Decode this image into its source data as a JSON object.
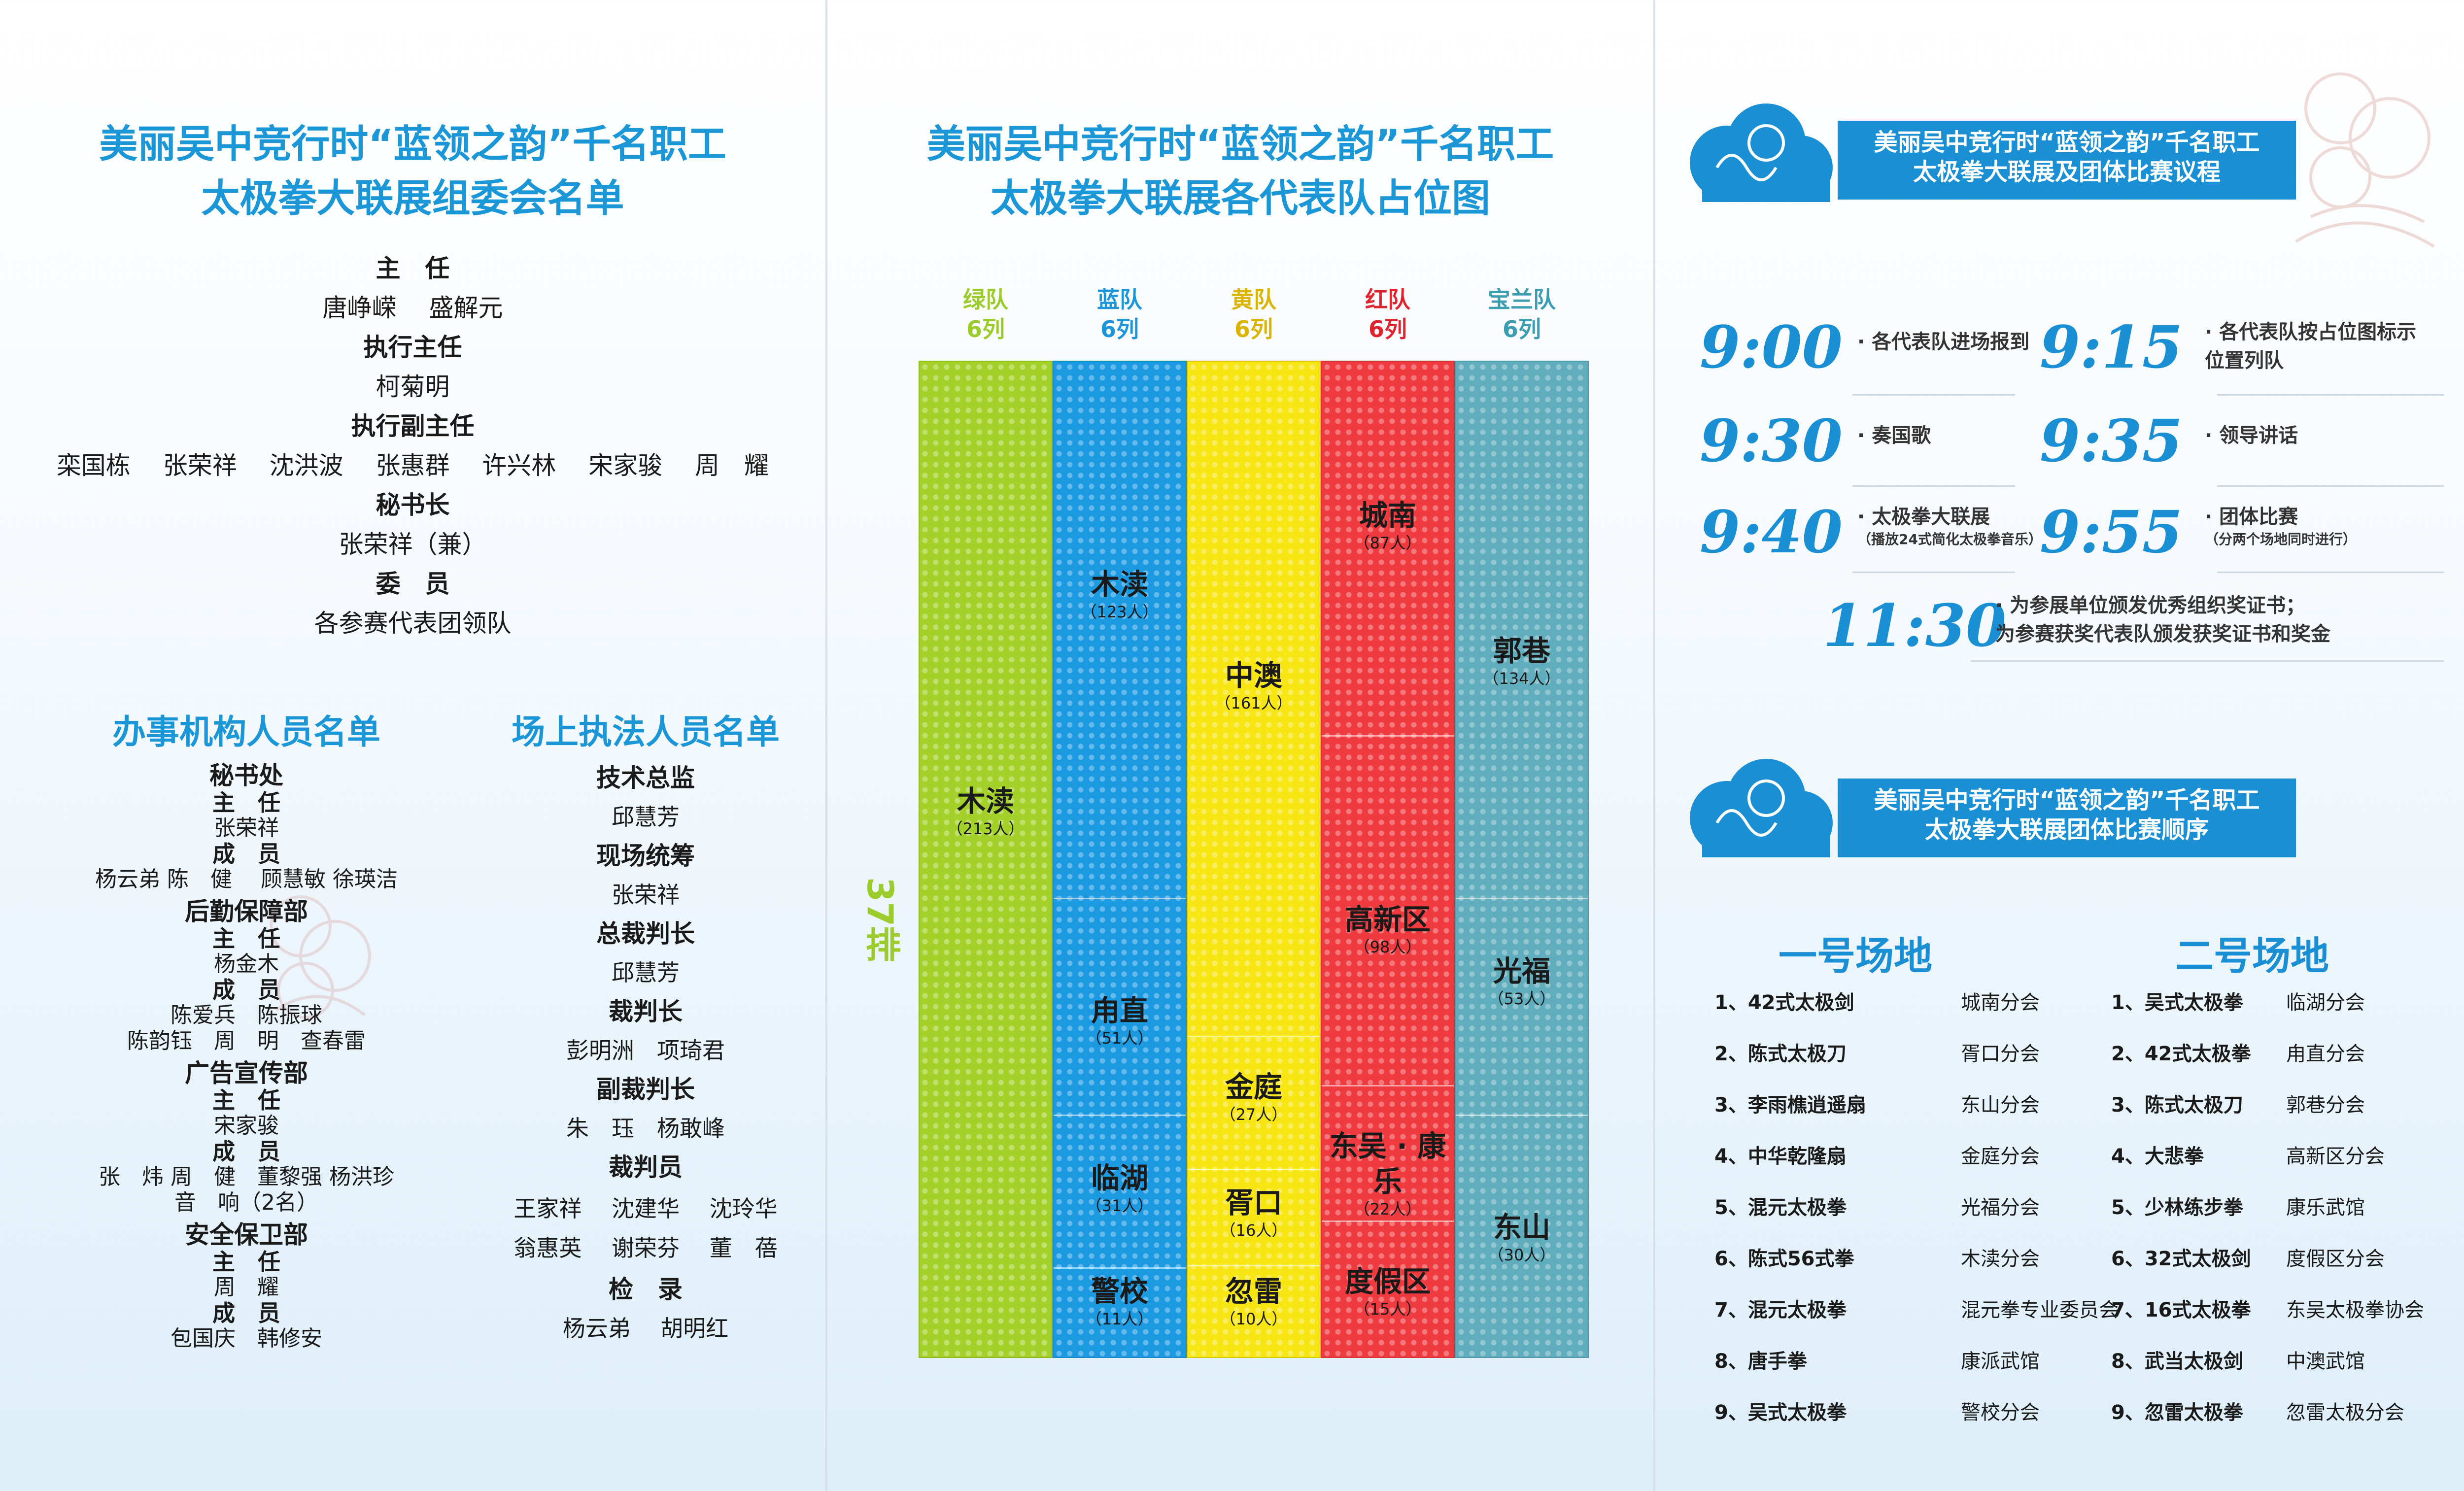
{
  "p1": {
    "title_l1": "美丽吴中竞行时“蓝领之韵”千名职工",
    "title_l2": "太极拳大联展组委会名单",
    "committee": [
      {
        "role": "主　任",
        "names": "唐峥嵘　 盛解元"
      },
      {
        "role": "执行主任",
        "names": "柯菊明"
      },
      {
        "role": "执行副主任",
        "names": "栾国栋　 张荣祥　 沈洪波　 张惠群　 许兴林　 宋家骏　 周　耀"
      },
      {
        "role": "秘书长",
        "names": "张荣祥（兼）"
      },
      {
        "role": "委　员",
        "names": "各参赛代表团领队"
      }
    ],
    "office_title": "办事机构人员名单",
    "office": [
      {
        "dept": "秘书处",
        "lines": [
          {
            "t": "r",
            "v": "主　任"
          },
          {
            "t": "n",
            "v": "张荣祥"
          },
          {
            "t": "r",
            "v": "成　员"
          },
          {
            "t": "n",
            "v": "杨云弟 陈　健　 顾慧敏 徐瑛洁"
          }
        ]
      },
      {
        "dept": "后勤保障部",
        "lines": [
          {
            "t": "r",
            "v": "主　任"
          },
          {
            "t": "n",
            "v": "杨金木"
          },
          {
            "t": "r",
            "v": "成　员"
          },
          {
            "t": "n",
            "v": "陈爱兵　陈振球"
          },
          {
            "t": "n",
            "v": "陈韵钰　周　明　查春雷"
          }
        ]
      },
      {
        "dept": "广告宣传部",
        "lines": [
          {
            "t": "r",
            "v": "主　任"
          },
          {
            "t": "n",
            "v": "宋家骏"
          },
          {
            "t": "r",
            "v": "成　员"
          },
          {
            "t": "n",
            "v": "张　炜 周　健　董黎强 杨洪珍"
          },
          {
            "t": "n",
            "v": "音　响（2名）"
          }
        ]
      },
      {
        "dept": "安全保卫部",
        "lines": [
          {
            "t": "r",
            "v": "主　任"
          },
          {
            "t": "n",
            "v": "周　耀"
          },
          {
            "t": "r",
            "v": "成　员"
          },
          {
            "t": "n",
            "v": "包国庆　韩修安"
          }
        ]
      }
    ],
    "field_title": "场上执法人员名单",
    "field": [
      {
        "role": "技术总监",
        "names": "邱慧芳"
      },
      {
        "role": "现场统筹",
        "names": "张荣祥"
      },
      {
        "role": "总裁判长",
        "names": "邱慧芳"
      },
      {
        "role": "裁判长",
        "names": "彭明洲　项琦君"
      },
      {
        "role": "副裁判长",
        "names": "朱　珏　杨敢峰"
      },
      {
        "role": "裁判员",
        "names": "王家祥　 沈建华　 沈玲华|翁惠英　 谢荣芬　 董　蓓"
      },
      {
        "role": "检　录",
        "names": "杨云弟　 胡明红"
      }
    ]
  },
  "p2": {
    "title_l1": "美丽吴中竞行时“蓝领之韵”千名职工",
    "title_l2": "太极拳大联展各代表队占位图",
    "rows_label": "37排",
    "teams": [
      {
        "name": "绿队",
        "cols": "6列",
        "color": "#9ccc2b",
        "fill": "#a3d12a"
      },
      {
        "name": "蓝队",
        "cols": "6列",
        "color": "#1d95d9",
        "fill": "#1b9ae2"
      },
      {
        "name": "黄队",
        "cols": "6列",
        "color": "#d9b400",
        "fill": "#f7e614"
      },
      {
        "name": "红队",
        "cols": "6列",
        "color": "#e0242f",
        "fill": "#ef3a3f"
      },
      {
        "name": "宝兰队",
        "cols": "6列",
        "color": "#3a9db0",
        "fill": "#5fadbd"
      }
    ],
    "zones": [
      {
        "team": 0,
        "name": "木渎",
        "count": "（213人）"
      },
      {
        "team": 1,
        "name": "木渎",
        "count": "（123人）"
      },
      {
        "team": 1,
        "name": "甪直",
        "count": "（51人）"
      },
      {
        "team": 1,
        "name": "临湖",
        "count": "（31人）"
      },
      {
        "team": 1,
        "name": "警校",
        "count": "（11人）"
      },
      {
        "team": 2,
        "name": "中澳",
        "count": "（161人）"
      },
      {
        "team": 2,
        "name": "金庭",
        "count": "（27人）"
      },
      {
        "team": 2,
        "name": "胥口",
        "count": "（16人）"
      },
      {
        "team": 2,
        "name": "忽雷",
        "count": "（10人）"
      },
      {
        "team": 3,
        "name": "城南",
        "count": "（87人）"
      },
      {
        "team": 3,
        "name": "高新区",
        "count": "（98人）"
      },
      {
        "team": 3,
        "name": "东吴 · 康乐",
        "count": "（22人）"
      },
      {
        "team": 3,
        "name": "度假区",
        "count": "（15人）"
      },
      {
        "team": 4,
        "name": "郭巷",
        "count": "（134人）"
      },
      {
        "team": 4,
        "name": "光福",
        "count": "（53人）"
      },
      {
        "team": 4,
        "name": "东山",
        "count": "（30人）"
      }
    ]
  },
  "p3": {
    "banner1_l1": "美丽吴中竞行时“蓝领之韵”千名职工",
    "banner1_l2": "太极拳大联展及团体比赛议程",
    "agenda": [
      {
        "time": "9:00",
        "event": "· 各代表队进场报到",
        "note": ""
      },
      {
        "time": "9:15",
        "event": "· 各代表队按占位图标示|位置列队",
        "note": ""
      },
      {
        "time": "9:30",
        "event": "· 奏国歌",
        "note": ""
      },
      {
        "time": "9:35",
        "event": "· 领导讲话",
        "note": ""
      },
      {
        "time": "9:40",
        "event": "· 太极拳大联展",
        "note": "（播放24式简化太极拳音乐）"
      },
      {
        "time": "9:55",
        "event": "· 团体比赛",
        "note": "（分两个场地同时进行）"
      },
      {
        "time": "11:30",
        "event": "· 为参展单位颁发优秀组织奖证书；|为参赛获奖代表队颁发获奖证书和奖金",
        "note": ""
      }
    ],
    "banner2_l1": "美丽吴中竞行时“蓝领之韵”千名职工",
    "banner2_l2": "太极拳大联展团体比赛顺序",
    "venue1": "一号场地",
    "venue2": "二号场地",
    "order1": [
      {
        "item": "1、42式太极剑",
        "unit": "城南分会"
      },
      {
        "item": "2、陈式太极刀",
        "unit": "胥口分会"
      },
      {
        "item": "3、李雨樵逍遥扇",
        "unit": "东山分会"
      },
      {
        "item": "4、中华乾隆扇",
        "unit": "金庭分会"
      },
      {
        "item": "5、混元太极拳",
        "unit": "光福分会"
      },
      {
        "item": "6、陈式56式拳",
        "unit": "木渎分会"
      },
      {
        "item": "7、混元太极拳",
        "unit": "混元拳专业委员会"
      },
      {
        "item": "8、唐手拳",
        "unit": "康派武馆"
      },
      {
        "item": "9、吴式太极拳",
        "unit": "警校分会"
      }
    ],
    "order2": [
      {
        "item": "1、吴式太极拳",
        "unit": "临湖分会"
      },
      {
        "item": "2、42式太极拳",
        "unit": "甪直分会"
      },
      {
        "item": "3、陈式太极刀",
        "unit": "郭巷分会"
      },
      {
        "item": "4、大悲拳",
        "unit": "高新区分会"
      },
      {
        "item": "5、少林练步拳",
        "unit": "康乐武馆"
      },
      {
        "item": "6、32式太极剑",
        "unit": "度假区分会"
      },
      {
        "item": "7、16式太极拳",
        "unit": "东吴太极拳协会"
      },
      {
        "item": "8、武当太极剑",
        "unit": "中澳武馆"
      },
      {
        "item": "9、忽雷太极拳",
        "unit": "忽雷太极分会"
      }
    ]
  }
}
